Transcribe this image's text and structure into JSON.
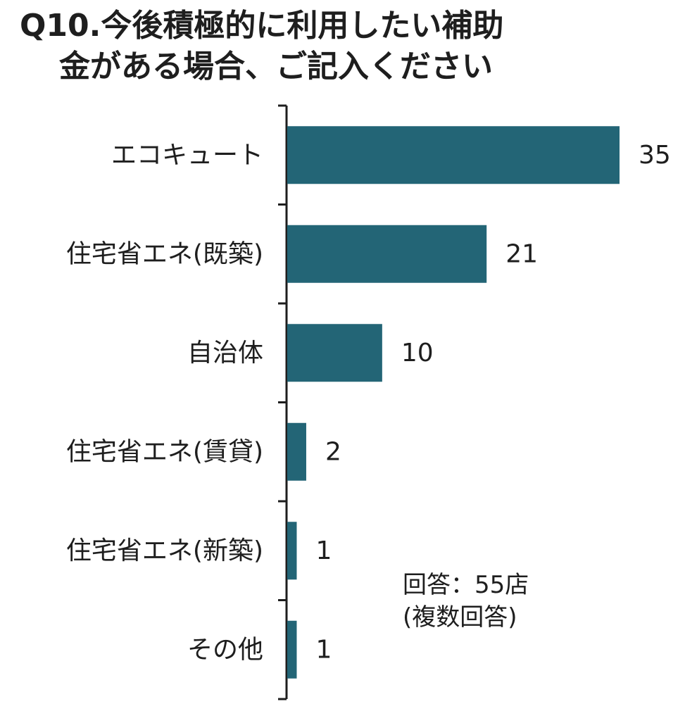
{
  "title_line1": "Q10.今後積極的に利用したい補助",
  "title_line2": "金がある場合、ご記入ください",
  "note_line1": "回答：55店",
  "note_line2": "(複数回答)",
  "bar_color": "#236576",
  "chart_data": {
    "type": "bar",
    "orientation": "horizontal",
    "categories": [
      "エコキュート",
      "住宅省エネ(既築)",
      "自治体",
      "住宅省エネ(賃貸)",
      "住宅省エネ(新築)",
      "その他"
    ],
    "values": [
      35,
      21,
      10,
      2,
      1,
      1
    ],
    "data_labels": [
      "35",
      "21",
      "10",
      "2",
      "1",
      "1"
    ],
    "xlim": [
      0,
      35
    ],
    "grid": false,
    "legend": "none"
  }
}
